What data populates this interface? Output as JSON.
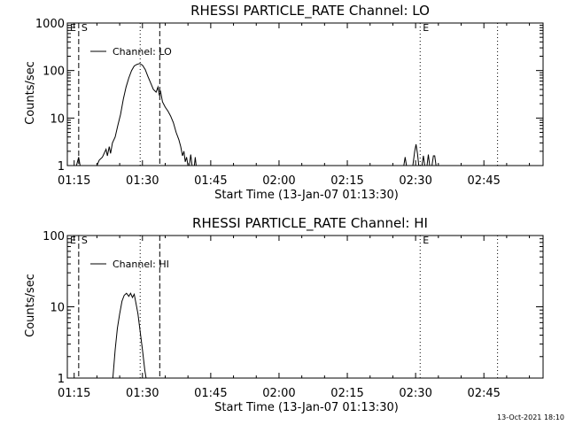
{
  "footer_stamp": "13-Oct-2021 18:10",
  "chart_data": [
    {
      "type": "line",
      "title": "RHESSI PARTICLE_RATE Channel: LO",
      "xlabel": "Start Time (13-Jan-07 01:13:30)",
      "ylabel": "Counts/sec",
      "yscale": "log",
      "ylim": [
        1,
        1000
      ],
      "yticks": [
        "1",
        "10",
        "100",
        "1000"
      ],
      "xlim_minutes": [
        73.5,
        178
      ],
      "xticks": [
        "01:15",
        "01:30",
        "01:45",
        "02:00",
        "02:15",
        "02:30",
        "02:45"
      ],
      "xticks_minutes": [
        75,
        90,
        105,
        120,
        135,
        150,
        165
      ],
      "legend": "Channel: LO",
      "markers": [
        {
          "label": "E",
          "minute": 73.5,
          "style": "none"
        },
        {
          "label": "S",
          "minute": 76,
          "style": "dashed"
        },
        {
          "label": "",
          "minute": 89.5,
          "style": "dotted"
        },
        {
          "label": "",
          "minute": 93.8,
          "style": "dashed"
        },
        {
          "label": "E",
          "minute": 151,
          "style": "dotted"
        },
        {
          "label": "",
          "minute": 168,
          "style": "dotted"
        }
      ],
      "series": [
        {
          "name": "Channel: LO",
          "segments": [
            [
              [
                75.5,
                1
              ],
              [
                76.0,
                1.5
              ],
              [
                76.3,
                1
              ]
            ],
            [
              [
                80.0,
                1
              ],
              [
                80.5,
                1.3
              ],
              [
                81.2,
                1.5
              ],
              [
                82.0,
                2.2
              ],
              [
                82.3,
                1.6
              ],
              [
                82.7,
                2.5
              ],
              [
                83.0,
                1.8
              ],
              [
                83.4,
                3.0
              ],
              [
                84.0,
                4.0
              ],
              [
                84.6,
                7.0
              ],
              [
                85.2,
                12
              ],
              [
                85.8,
                25
              ],
              [
                86.4,
                45
              ],
              [
                87.0,
                70
              ],
              [
                87.6,
                100
              ],
              [
                88.2,
                125
              ],
              [
                88.8,
                135
              ],
              [
                89.4,
                140
              ],
              [
                90.0,
                130
              ],
              [
                90.6,
                105
              ],
              [
                91.2,
                75
              ],
              [
                91.8,
                55
              ],
              [
                92.4,
                40
              ],
              [
                93.0,
                35
              ],
              [
                93.4,
                45
              ],
              [
                93.7,
                30
              ],
              [
                94.0,
                36
              ],
              [
                94.4,
                22
              ],
              [
                95.0,
                17
              ],
              [
                95.6,
                14
              ],
              [
                96.2,
                11
              ],
              [
                96.8,
                8
              ],
              [
                97.4,
                5
              ],
              [
                98.0,
                3.5
              ],
              [
                98.4,
                2.5
              ],
              [
                98.8,
                1.6
              ],
              [
                99.1,
                2.0
              ],
              [
                99.4,
                1.2
              ],
              [
                99.7,
                1.5
              ],
              [
                100.0,
                1
              ]
            ],
            [
              [
                100.3,
                1
              ],
              [
                100.6,
                1.7
              ],
              [
                100.9,
                1
              ]
            ],
            [
              [
                101.4,
                1
              ],
              [
                101.6,
                1.5
              ],
              [
                101.8,
                1
              ]
            ],
            [
              [
                147.4,
                1
              ],
              [
                147.7,
                1.5
              ],
              [
                148.0,
                1
              ]
            ],
            [
              [
                149.4,
                1
              ],
              [
                149.8,
                2.0
              ],
              [
                150.1,
                2.8
              ],
              [
                150.4,
                1.8
              ],
              [
                150.7,
                1
              ]
            ],
            [
              [
                151.4,
                1
              ],
              [
                151.7,
                1.6
              ],
              [
                152.0,
                1
              ]
            ],
            [
              [
                152.5,
                1
              ],
              [
                152.8,
                1.7
              ],
              [
                153.1,
                1
              ]
            ],
            [
              [
                153.6,
                1
              ],
              [
                153.9,
                1.6
              ],
              [
                154.2,
                1.6
              ],
              [
                154.5,
                1
              ]
            ]
          ]
        }
      ]
    },
    {
      "type": "line",
      "title": "RHESSI PARTICLE_RATE Channel: HI",
      "xlabel": "Start Time (13-Jan-07 01:13:30)",
      "ylabel": "Counts/sec",
      "yscale": "log",
      "ylim": [
        1,
        100
      ],
      "yticks": [
        "1",
        "10",
        "100"
      ],
      "xlim_minutes": [
        73.5,
        178
      ],
      "xticks": [
        "01:15",
        "01:30",
        "01:45",
        "02:00",
        "02:15",
        "02:30",
        "02:45"
      ],
      "xticks_minutes": [
        75,
        90,
        105,
        120,
        135,
        150,
        165
      ],
      "legend": "Channel: HI",
      "markers": [
        {
          "label": "E",
          "minute": 73.5,
          "style": "none"
        },
        {
          "label": "S",
          "minute": 76,
          "style": "dashed"
        },
        {
          "label": "",
          "minute": 89.5,
          "style": "dotted"
        },
        {
          "label": "",
          "minute": 93.8,
          "style": "dashed"
        },
        {
          "label": "E",
          "minute": 151,
          "style": "dotted"
        },
        {
          "label": "",
          "minute": 168,
          "style": "dotted"
        }
      ],
      "series": [
        {
          "name": "Channel: HI",
          "segments": [
            [
              [
                83.5,
                1
              ],
              [
                84.0,
                2.5
              ],
              [
                84.5,
                5
              ],
              [
                85.0,
                8
              ],
              [
                85.5,
                12
              ],
              [
                86.0,
                14.5
              ],
              [
                86.5,
                15.5
              ],
              [
                87.0,
                14
              ],
              [
                87.4,
                15.5
              ],
              [
                87.8,
                13.5
              ],
              [
                88.2,
                15
              ],
              [
                88.6,
                11
              ],
              [
                89.0,
                8
              ],
              [
                89.5,
                4.5
              ],
              [
                90.0,
                2.5
              ],
              [
                90.5,
                1.3
              ],
              [
                90.8,
                1
              ]
            ]
          ]
        }
      ]
    }
  ]
}
